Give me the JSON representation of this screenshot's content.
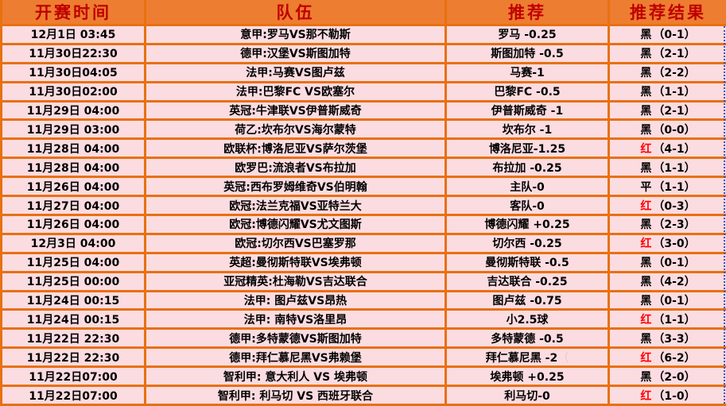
{
  "table": {
    "headers": {
      "time": "开赛时间",
      "teams": "队伍",
      "recommendation": "推荐",
      "result": "推荐结果"
    }
  },
  "rows": [
    {
      "time": "12月1日 03:45",
      "teams": "意甲:罗马VS那不勒斯",
      "rec": "罗马 -0.25",
      "result_flag": "黑",
      "result_score": "（0-1）"
    },
    {
      "time": "11月30日22:30",
      "teams": "德甲:汉堡VS斯图加特",
      "rec": "斯图加特 -0.5",
      "result_flag": "黑",
      "result_score": "（2-1）"
    },
    {
      "time": "11月30日04:05",
      "teams": "法甲:马赛VS图卢兹",
      "rec": "马赛-1",
      "result_flag": "黑",
      "result_score": "（2-2）"
    },
    {
      "time": "11月30日02:00",
      "teams": "法甲:巴黎FC VS欧塞尔",
      "rec": "巴黎FC -0.5",
      "result_flag": "黑",
      "result_score": "（1-1）"
    },
    {
      "time": "11月29日 04:00",
      "teams": "英冠:牛津联VS伊普斯威奇",
      "rec": "伊普斯威奇 -1",
      "result_flag": "黑",
      "result_score": "（2-1）"
    },
    {
      "time": "11月29日 03:00",
      "teams": "荷乙:坎布尔VS海尔蒙特",
      "rec": "坎布尔 -1",
      "result_flag": "黑",
      "result_score": "（0-0）"
    },
    {
      "time": "11月28日 04:00",
      "teams": "欧联杯:博洛尼亚VS萨尔茨堡",
      "rec": "博洛尼亚-1.25",
      "result_flag": "红",
      "result_score": "（4-1）"
    },
    {
      "time": "11月28日 04:00",
      "teams": "欧罗巴:流浪者VS布拉加",
      "rec": "布拉加 -0.25",
      "result_flag": "黑",
      "result_score": "（1-1）"
    },
    {
      "time": "11月26日 04:00",
      "teams": "英冠:西布罗姆维奇VS伯明翰",
      "rec": "主队-0",
      "result_flag": "平",
      "result_score": "（1-1）"
    },
    {
      "time": "11月27日 04:00",
      "teams": "欧冠:法兰克福VS亚特兰大",
      "rec": "客队-0",
      "result_flag": "红",
      "result_score": "（0-3）"
    },
    {
      "time": "11月26日 04:00",
      "teams": "欧冠:博德闪耀VS尤文图斯",
      "rec": "博德闪耀 +0.25",
      "result_flag": "黑",
      "result_score": "（2-3）"
    },
    {
      "time": "12月3日 04:00",
      "teams": "欧冠:切尔西VS巴塞罗那",
      "rec": "切尔西 -0.25",
      "result_flag": "红",
      "result_score": "（3-0）"
    },
    {
      "time": "11月25日 04:00",
      "teams": "英超:曼彻斯特联VS埃弗顿",
      "rec": "曼彻斯特联 -0.5",
      "result_flag": "黑",
      "result_score": "（0-1）"
    },
    {
      "time": "11月25日 00:00",
      "teams": "亚冠精英:杜海勒VS吉达联合",
      "rec": "吉达联合 -0.25",
      "result_flag": "黑",
      "result_score": "（4-2）"
    },
    {
      "time": "11月24日 00:15",
      "teams": "法甲: 图卢兹VS昂热",
      "rec": "图卢兹 -0.75",
      "result_flag": "黑",
      "result_score": "（0-1）"
    },
    {
      "time": "11月24日 00:15",
      "teams": "法甲: 南特VS洛里昂",
      "rec": "小2.5球",
      "result_flag": "红",
      "result_score": "（1-1）"
    },
    {
      "time": "11月22日 22:30",
      "teams": "德甲:多特蒙德VS斯图加特",
      "rec": "多特蒙德 -0.5",
      "result_flag": "黑",
      "result_score": "（3-3）"
    },
    {
      "time": "11月22日 22:30",
      "teams": "德甲:拜仁慕尼黑VS弗赖堡",
      "rec": "拜仁慕尼黑 -2",
      "rec_faint": "（",
      "result_flag": "红",
      "result_score": "（6-2）"
    },
    {
      "time": "11月22日07:00",
      "teams": "智利甲: 意大利人 VS 埃弗顿",
      "rec": "埃弗顿 +0.25",
      "result_flag": "黑",
      "result_score": "（2-0）"
    },
    {
      "time": "11月22日07:00",
      "teams": "智利甲: 利马切 VS 西班牙联合",
      "rec": "利马切-0",
      "result_flag": "红",
      "result_score": "（1-0）"
    }
  ],
  "flag_colors": {
    "红": "#FF0000",
    "黑": "#000000",
    "平": "#000000"
  },
  "colors": {
    "header_bg": "#ED7D31",
    "header_text": "#C00000",
    "grid_line": "#E8700F",
    "row_bg": "#FBDCE1",
    "text": "#000000",
    "result_red": "#FF0000",
    "faint": "#F5CBD2",
    "page_break_line": "#3F51C1"
  }
}
